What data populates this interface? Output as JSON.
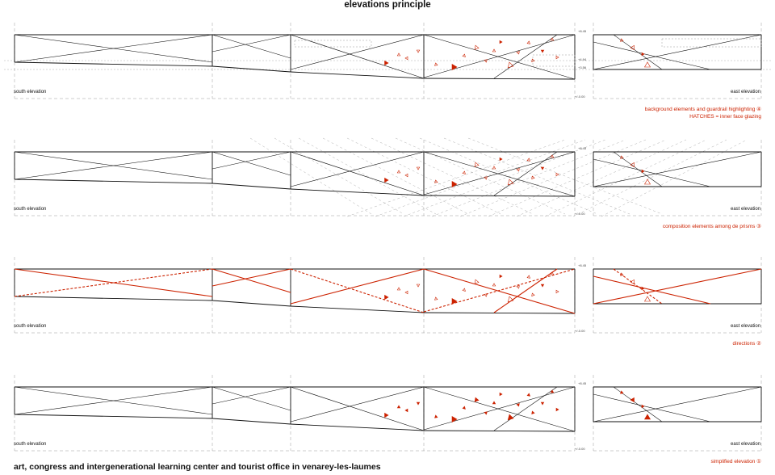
{
  "title": "elevations principle",
  "footer": "art, congress and intergenerational learning center and tourist office in venarey-les-laumes",
  "colors": {
    "line": "#111111",
    "accent": "#cc2200",
    "guide": "#999999"
  },
  "panels": [
    {
      "south_label": "south elevation",
      "east_label": "east elevation",
      "level_top": "+8.45",
      "level_mid": "+4.94",
      "level_low": "+3.56",
      "level_base": "+/-0.00",
      "caption_lines": [
        "background elements and guardrail highlighting ④",
        "HATCHES = inner face glazing"
      ]
    },
    {
      "south_label": "south elevation",
      "east_label": "east elevation",
      "level_top": "+8.45",
      "level_base": "+/-0.00",
      "caption_lines": [
        "composition elements among de prisms ③"
      ]
    },
    {
      "south_label": "south elevation",
      "east_label": "east elevation",
      "level_top": "+8.45",
      "level_base": "+/-0.00",
      "caption_lines": [
        "directions ②"
      ]
    },
    {
      "south_label": "south elevation",
      "east_label": "east elevation",
      "level_top": "+8.45",
      "level_base": "+/-0.00",
      "caption_lines": [
        "simplified elevation ①"
      ]
    }
  ]
}
